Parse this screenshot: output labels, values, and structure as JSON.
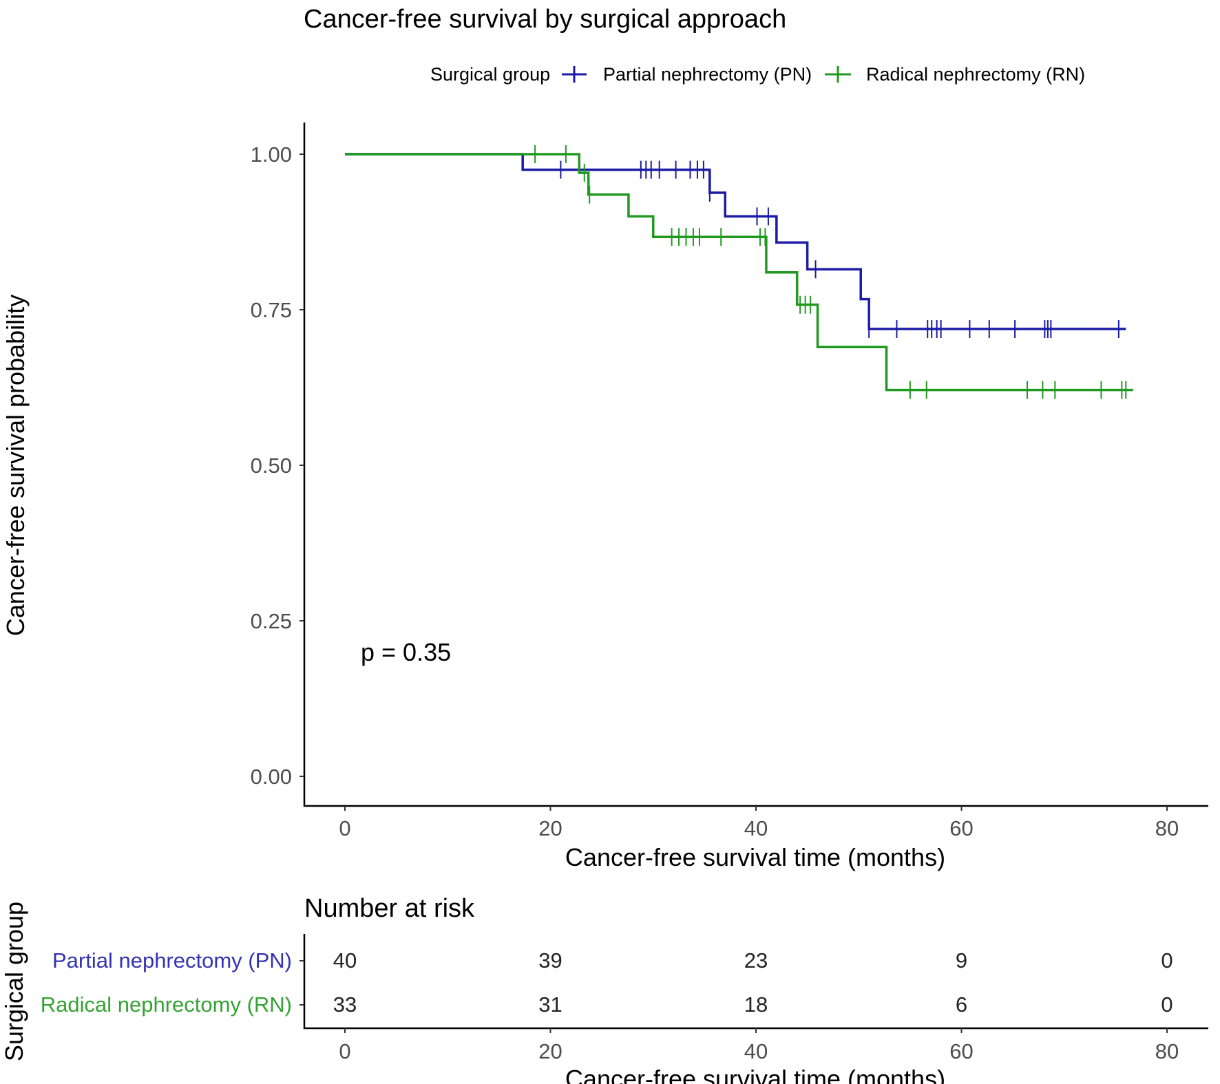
{
  "chart_data": {
    "type": "line",
    "subtype": "kaplan-meier step",
    "title": "Cancer-free survival by surgical approach",
    "xlabel": "Cancer-free survival time (months)",
    "ylabel": "Cancer-free survival probability",
    "xlim": [
      0,
      80
    ],
    "ylim": [
      0,
      1
    ],
    "x_ticks": [
      "0",
      "20",
      "40",
      "60",
      "80"
    ],
    "y_ticks": [
      "0.00",
      "0.25",
      "0.50",
      "0.75",
      "1.00"
    ],
    "grid": false,
    "legend": {
      "title": "Surgical group",
      "placement": "top",
      "entries": [
        "Partial nephrectomy (PN)",
        "Radical nephrectomy (RN)"
      ]
    },
    "annotation": "p = 0.35",
    "series": [
      {
        "name": "Partial nephrectomy (PN)",
        "color": "#1a1aa6",
        "steps": [
          [
            0,
            1.0
          ],
          [
            17.3,
            0.975
          ],
          [
            35.5,
            0.938
          ],
          [
            37,
            0.9
          ],
          [
            42,
            0.858
          ],
          [
            45,
            0.815
          ],
          [
            50.2,
            0.767
          ],
          [
            51,
            0.719
          ],
          [
            76,
            0.719
          ]
        ],
        "censored": [
          21,
          28.8,
          29.3,
          29.8,
          30.6,
          32.2,
          33.6,
          34.3,
          34.9,
          35.5,
          40.1,
          41.2,
          45.8,
          51,
          53.7,
          56.7,
          57.1,
          57.6,
          58,
          60.8,
          62.7,
          65.2,
          68.1,
          68.4,
          68.7,
          75.3
        ]
      },
      {
        "name": "Radical nephrectomy (RN)",
        "color": "#1f9a1f",
        "steps": [
          [
            0,
            1.0
          ],
          [
            22.8,
            0.97
          ],
          [
            23.7,
            0.935
          ],
          [
            27.6,
            0.9
          ],
          [
            30,
            0.867
          ],
          [
            41,
            0.81
          ],
          [
            44,
            0.758
          ],
          [
            46,
            0.69
          ],
          [
            52.7,
            0.621
          ],
          [
            76.7,
            0.621
          ]
        ],
        "censored": [
          18.5,
          21.5,
          23.3,
          23.8,
          31.8,
          32.5,
          33.2,
          33.9,
          34.5,
          36.6,
          40.4,
          40.9,
          44.3,
          44.8,
          45.3,
          55,
          56.6,
          66.4,
          67.9,
          69.1,
          73.6,
          75.6,
          76
        ]
      }
    ],
    "risk_table": {
      "title": "Number at risk",
      "ylabel": "Surgical group",
      "xlabel": "Cancer-free survival time (months)",
      "times": [
        "0",
        "20",
        "40",
        "60",
        "80"
      ],
      "rows": [
        {
          "label": "Partial nephrectomy (PN)",
          "color": "#3333b3",
          "values": [
            "40",
            "39",
            "23",
            "9",
            "0"
          ]
        },
        {
          "label": "Radical nephrectomy (RN)",
          "color": "#33a333",
          "values": [
            "33",
            "31",
            "18",
            "6",
            "0"
          ]
        }
      ]
    }
  }
}
